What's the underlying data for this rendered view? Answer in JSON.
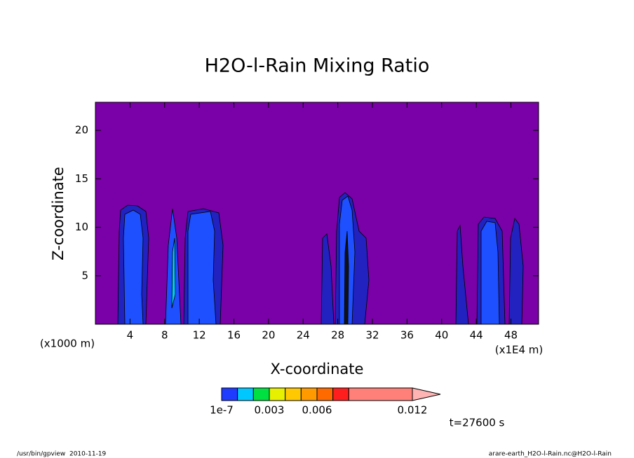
{
  "chart_data": {
    "type": "contour",
    "title": "H2O-l-Rain Mixing Ratio",
    "xlabel": "X-coordinate",
    "ylabel": "Z-coordinate",
    "xunit": "(x1E4 m)",
    "yunit": "(x1000 m)",
    "xlim": [
      0,
      51.2
    ],
    "ylim": [
      0,
      22.9
    ],
    "xticks": [
      4,
      8,
      12,
      16,
      20,
      24,
      28,
      32,
      36,
      40,
      44,
      48
    ],
    "yticks": [
      5,
      10,
      15,
      20
    ],
    "background": "#7a00a8",
    "colorbar": {
      "levels": [
        1e-07,
        0.001,
        0.002,
        0.003,
        0.004,
        0.005,
        0.006,
        0.007,
        0.008,
        0.012
      ],
      "colors": [
        "#1e3cff",
        "#00c8ff",
        "#00e040",
        "#e6f000",
        "#ffc800",
        "#ff9a00",
        "#ff6a00",
        "#ff1e1e",
        "#ff8078"
      ],
      "extend_color": "#ffb4b4",
      "ticks": [
        1e-07,
        0.003,
        0.006,
        0.012
      ]
    },
    "annotation": "t=27600 s"
  },
  "footer": {
    "left": "/usr/bin/gpview  2010-11-19",
    "right": "arare-earth_H2O-l-Rain.nc@H2O-l-Rain"
  }
}
